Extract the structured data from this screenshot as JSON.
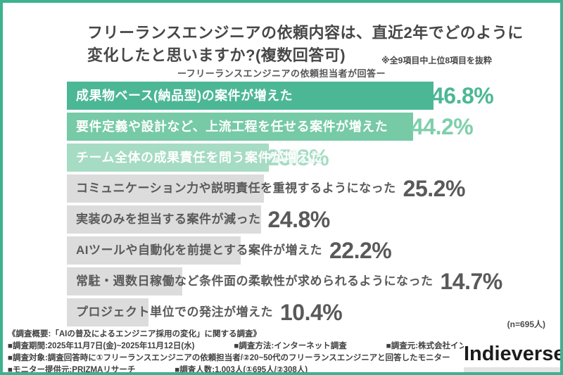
{
  "frame": {
    "border_color": "#3cb28e"
  },
  "header": {
    "title_line1": "フリーランスエンジニアの依頼内容は、直近2年でどのように",
    "title_line2": "変化したと思いますか?(複数回答可)",
    "note": "※全9項目中上位8項目を抜粋",
    "subtitle": "ーフリーランスエンジニアの依頼担当者が回答ー"
  },
  "chart_data": {
    "type": "bar",
    "orientation": "horizontal",
    "unit": "%",
    "xlim": [
      0,
      50
    ],
    "grid": false,
    "legend": false,
    "categories": [
      "成果物ベース(納品型)の案件が増えた",
      "要件定義や設計など、上流工程を任せる案件が増えた",
      "チーム全体の成果責任を問う案件が増えた",
      "コミュニケーション力や説明責任を重視するようになった",
      "実装のみを担当する案件が減った",
      "AIツールや自動化を前提とする案件が増えた",
      "常駐・週数日稼働など条件面の柔軟性が求められるようになった",
      "プロジェクト単位での発注が増えた"
    ],
    "values": [
      46.8,
      44.2,
      25.8,
      25.2,
      24.8,
      22.2,
      14.7,
      10.4
    ],
    "value_labels": [
      "46.8%",
      "44.2%",
      "25.8%",
      "25.2%",
      "24.8%",
      "22.2%",
      "14.7%",
      "10.4%"
    ],
    "bar_colors": [
      "#4cb795",
      "#76caa6",
      "#a6dcc4",
      "#dcdcdc",
      "#dcdcdc",
      "#dcdcdc",
      "#dcdcdc",
      "#dcdcdc"
    ],
    "label_colors": [
      "#ffffff",
      "#ffffff",
      "#ffffff",
      "#5a5a5a",
      "#5a5a5a",
      "#5a5a5a",
      "#5a5a5a",
      "#5a5a5a"
    ],
    "value_label_colors": [
      "#4cb795",
      "#7ecfab",
      "#a6dcc4",
      "#595959",
      "#595959",
      "#595959",
      "#595959",
      "#595959"
    ]
  },
  "footnote": {
    "sample_size": "(n=695人)"
  },
  "survey_overview": {
    "heading": "《調査概要:「AIの普及によるエンジニア採用の変化」に関する調査》",
    "lines": [
      [
        "■調査期間:2025年11月7日(金)~2025年11月12日(水)",
        "■調査方法:インターネット調査",
        "■調査元:株式会社インディバース"
      ],
      [
        "■調査対象:調査回答時に①フリーランスエンジニアの依頼担当者/②20~50代のフリーランスエンジニアと回答したモニター"
      ],
      [
        "■モニター提供元:PRIZMAリサーチ",
        "■調査人数:1,003人(①695人/②308人)"
      ]
    ]
  },
  "logo": {
    "text": "Indieverse"
  }
}
